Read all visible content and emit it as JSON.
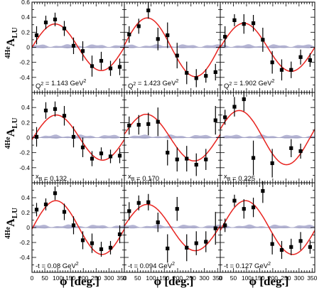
{
  "chart_data": {
    "type": "scatter",
    "ylabel": {
      "main": "A",
      "sub": "LU",
      "sup": "4He"
    },
    "xlabel": "ϕ [deg.]",
    "xlim": [
      0,
      360
    ],
    "ylim": [
      -0.6,
      0.6
    ],
    "xticks": [
      0,
      50,
      100,
      150,
      200,
      250,
      300,
      350
    ],
    "yticks": [
      -0.4,
      -0.2,
      0,
      0.2,
      0.4,
      0.6
    ],
    "grid": false,
    "colors": {
      "fit": "#e8231f",
      "band": "#a8a8cc",
      "points": "#000000"
    },
    "panels": [
      {
        "label": {
          "main": "Q",
          "sup": "2",
          "rest": "= 1.143 GeV",
          "sup2": "2"
        },
        "x": [
          18,
          54,
          90,
          126,
          162,
          198,
          234,
          270,
          306,
          342
        ],
        "y": [
          0.16,
          0.33,
          0.37,
          0.25,
          0.02,
          -0.05,
          -0.25,
          -0.18,
          -0.28,
          -0.26
        ],
        "err": [
          0.12,
          0.09,
          0.09,
          0.1,
          0.11,
          0.13,
          0.14,
          0.12,
          0.1,
          0.11
        ],
        "fit_amp": 0.31,
        "fit_phase": 90
      },
      {
        "label": {
          "main": "Q",
          "sup": "2",
          "rest": "= 1.423 GeV",
          "sup2": "2"
        },
        "x": [
          18,
          54,
          90,
          126,
          162,
          198,
          234,
          270,
          306,
          342
        ],
        "y": [
          0.17,
          0.28,
          0.49,
          0.11,
          0.16,
          -0.11,
          -0.34,
          -0.41,
          -0.38,
          -0.33
        ],
        "err": [
          0.11,
          0.1,
          0.11,
          0.15,
          0.17,
          0.17,
          0.15,
          0.12,
          0.09,
          0.11
        ],
        "fit_amp": 0.39,
        "fit_phase": 86
      },
      {
        "label": {
          "main": "Q",
          "sup": "2",
          "rest": "= 1.902 GeV",
          "sup2": "2"
        },
        "x": [
          18,
          54,
          90,
          126,
          162,
          198,
          234,
          270,
          306,
          342
        ],
        "y": [
          0.14,
          0.36,
          0.31,
          0.32,
          0.1,
          -0.2,
          -0.3,
          -0.3,
          -0.13,
          -0.17
        ],
        "err": [
          0.14,
          0.08,
          0.13,
          0.11,
          0.16,
          0.15,
          0.14,
          0.11,
          0.1,
          0.09
        ],
        "fit_amp": 0.32,
        "fit_phase": 90
      },
      {
        "label": {
          "main": "x",
          "sub": "B",
          "rest": "= 0.132"
        },
        "x": [
          18,
          54,
          90,
          126,
          162,
          198,
          234,
          270,
          306,
          342
        ],
        "y": [
          0.01,
          0.36,
          0.38,
          0.29,
          0.01,
          -0.13,
          -0.28,
          -0.21,
          -0.25,
          -0.24
        ],
        "err": [
          0.13,
          0.11,
          0.1,
          0.13,
          0.14,
          0.13,
          0.1,
          0.08,
          0.09,
          0.1
        ],
        "fit_amp": 0.3,
        "fit_phase": 95
      },
      {
        "label": {
          "main": "x",
          "sub": "B",
          "rest": "= 0.170"
        },
        "x": [
          18,
          54,
          90,
          126,
          162,
          198,
          234,
          270,
          306,
          342
        ],
        "y": [
          0.16,
          0.17,
          0.18,
          0.21,
          -0.2,
          -0.29,
          -0.28,
          -0.36,
          -0.29,
          0.23
        ],
        "err": [
          0.12,
          0.13,
          0.15,
          0.19,
          0.17,
          0.16,
          0.17,
          0.15,
          0.14,
          0.19
        ],
        "fit_amp": 0.31,
        "fit_phase": 82
      },
      {
        "label": {
          "main": "x",
          "sub": "B",
          "rest": "= 0.225"
        },
        "x": [
          18,
          54,
          90,
          126,
          162,
          198,
          234,
          270,
          306,
          342
        ],
        "y": [
          0.27,
          0.41,
          0.51,
          -0.27,
          null,
          -0.34,
          null,
          -0.14,
          -0.18,
          null
        ],
        "err": [
          0.1,
          0.13,
          0.16,
          0.23,
          null,
          0.19,
          null,
          0.12,
          0.1,
          null
        ],
        "fit_amp": 0.36,
        "fit_phase": 72
      },
      {
        "label": {
          "main": "-t",
          "rest": "= 0.08 GeV",
          "sup2": "2"
        },
        "x": [
          18,
          54,
          90,
          126,
          162,
          198,
          234,
          270,
          306,
          342
        ],
        "y": [
          0.24,
          0.31,
          0.46,
          0.21,
          0.03,
          -0.17,
          -0.21,
          -0.29,
          -0.27,
          -0.09
        ],
        "err": [
          0.09,
          0.08,
          0.09,
          0.11,
          0.12,
          0.12,
          0.13,
          0.1,
          0.09,
          0.12
        ],
        "fit_amp": 0.36,
        "fit_phase": 93
      },
      {
        "label": {
          "main": "-t",
          "rest": "= 0.094 GeV",
          "sup2": "2"
        },
        "x": [
          18,
          54,
          90,
          126,
          162,
          198,
          234,
          270,
          306,
          342
        ],
        "y": [
          0.22,
          0.33,
          0.34,
          0.07,
          -0.28,
          0.25,
          -0.27,
          -0.21,
          -0.19,
          -0.01
        ],
        "err": [
          0.12,
          0.1,
          0.11,
          0.13,
          0.19,
          0.16,
          0.18,
          0.16,
          0.14,
          0.22
        ],
        "fit_amp": 0.31,
        "fit_phase": 86
      },
      {
        "label": {
          "main": "-t",
          "rest": "= 0.127 GeV",
          "sup2": "2"
        },
        "x": [
          18,
          54,
          90,
          126,
          162,
          198,
          234,
          270,
          306,
          342
        ],
        "y": [
          0.03,
          0.36,
          0.25,
          0.27,
          0.49,
          -0.22,
          -0.3,
          -0.26,
          -0.18,
          -0.26
        ],
        "err": [
          0.09,
          0.08,
          0.13,
          0.13,
          0.16,
          0.14,
          0.12,
          0.11,
          0.12,
          0.09
        ],
        "fit_amp": 0.36,
        "fit_phase": 96
      }
    ]
  }
}
